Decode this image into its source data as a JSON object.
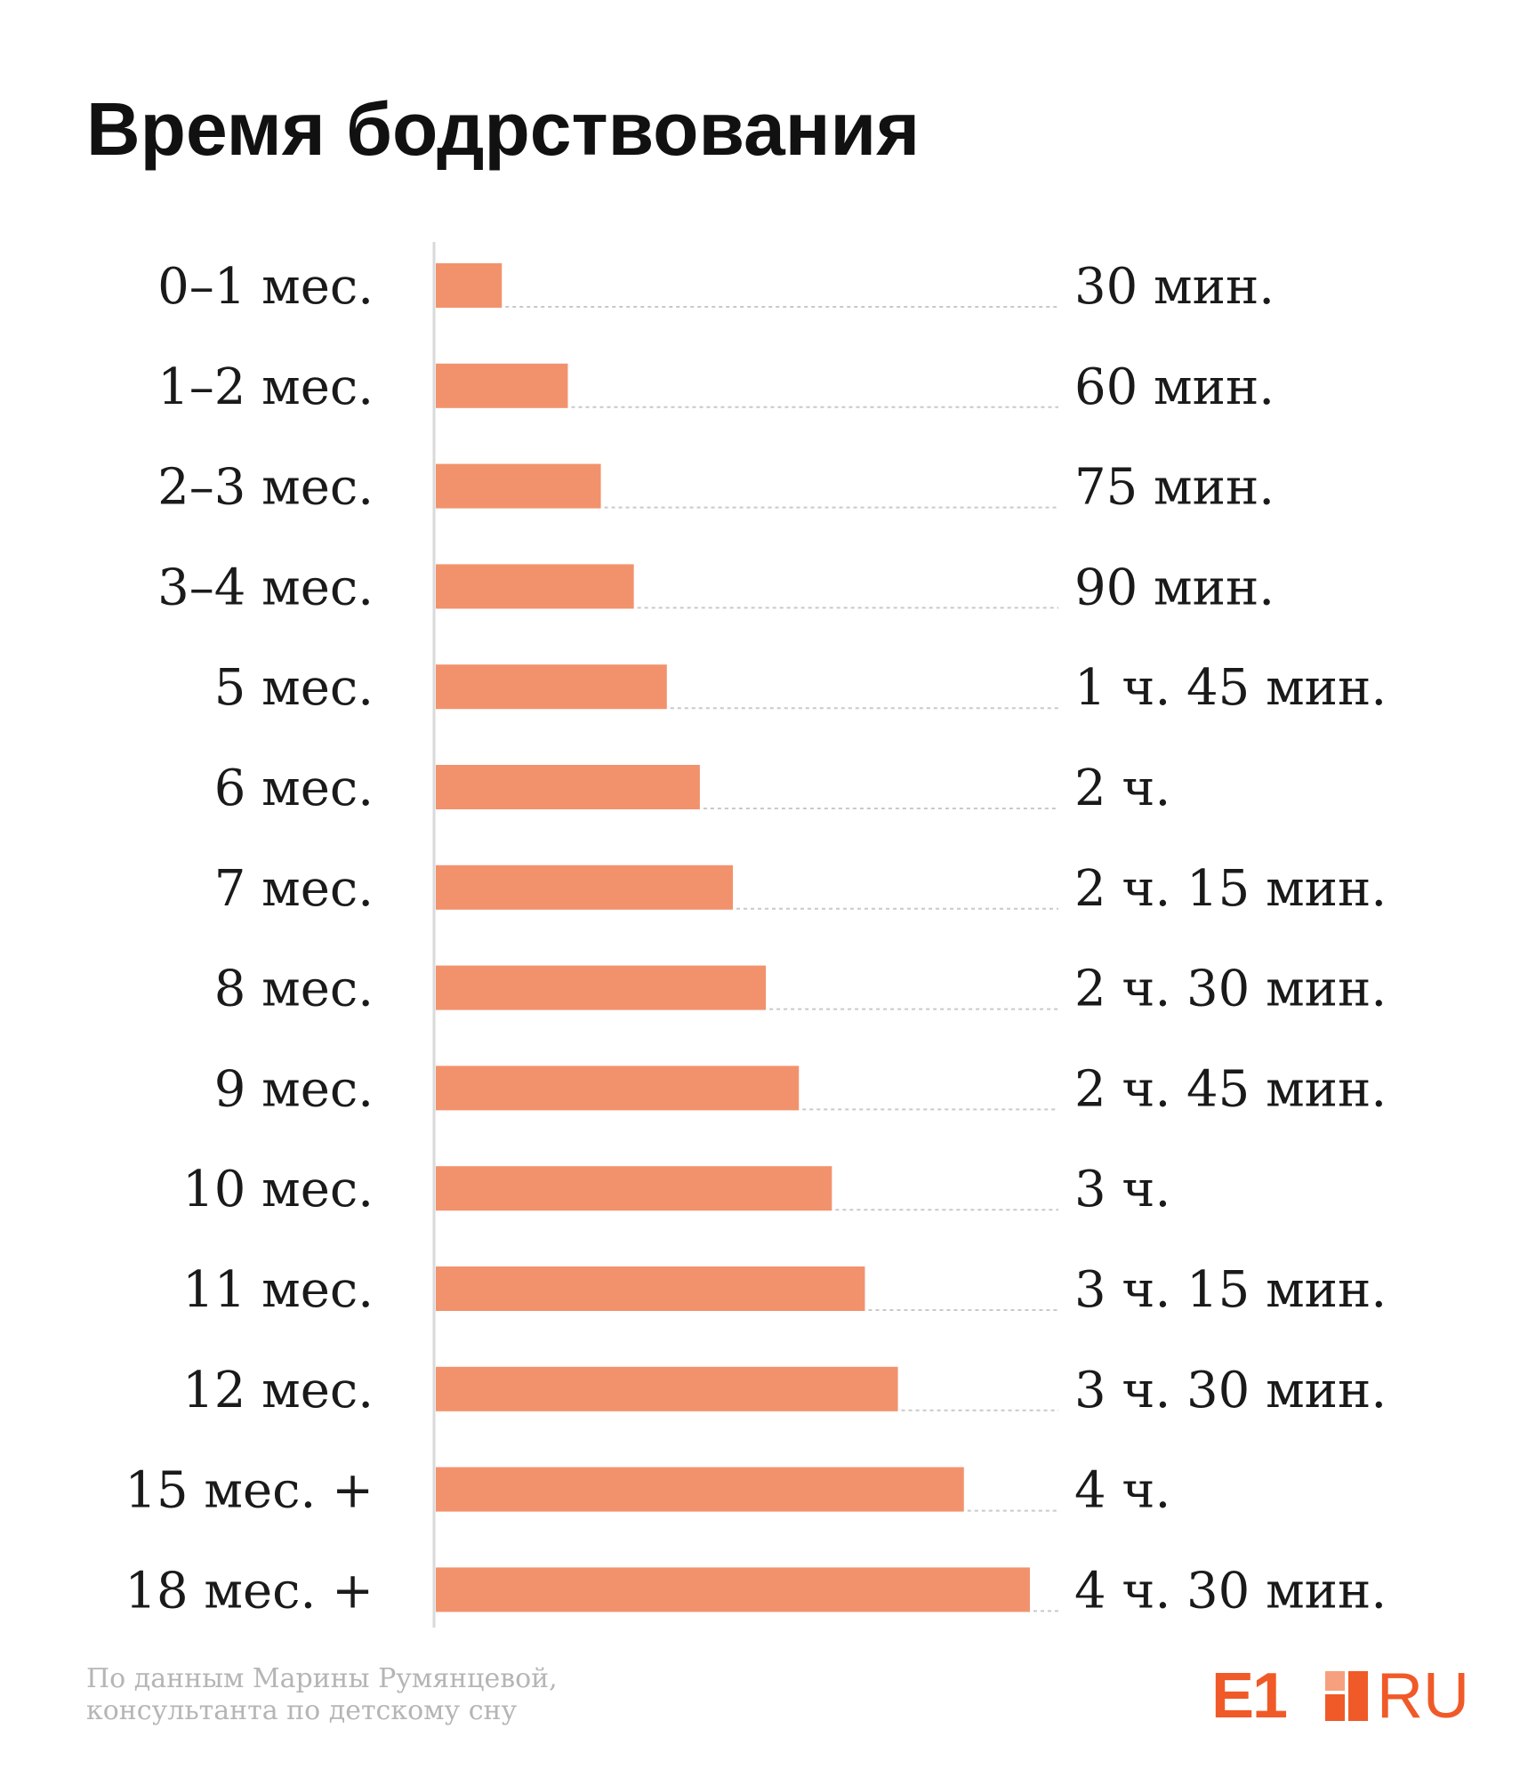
{
  "chart_data": {
    "type": "bar",
    "orientation": "horizontal",
    "title": "Время бодрствования",
    "categories": [
      "0–1 мес.",
      "1–2 мес.",
      "2–3 мес.",
      "3–4 мес.",
      "5 мес.",
      "6 мес.",
      "7 мес.",
      "8 мес.",
      "9 мес.",
      "10 мес.",
      "11 мес.",
      "12 мес.",
      "15 мес. +",
      "18 мес. +"
    ],
    "values": [
      30,
      60,
      75,
      90,
      105,
      120,
      135,
      150,
      165,
      180,
      195,
      210,
      240,
      270
    ],
    "value_labels": [
      "30 мин.",
      "60 мин.",
      "75 мин.",
      "90 мин.",
      "1 ч. 45 мин.",
      "2 ч.",
      "2 ч. 15 мин.",
      "2 ч. 30 мин.",
      "2 ч. 45 мин.",
      "3 ч.",
      "3 ч. 15 мин.",
      "3 ч. 30 мин.",
      "4 ч.",
      "4 ч. 30 мин."
    ],
    "xlim": [
      0,
      270
    ],
    "grid": false
  },
  "colors": {
    "bar": "#f2926d",
    "axis": "#d9d9d9",
    "leader": "#c9c9c9",
    "text": "#1a1a1a",
    "source": "#b5b5b5",
    "logo": "#f05a28",
    "logo_light": "#f7a07e"
  },
  "source": {
    "line1": "По данным Марины Румянцевой,",
    "line2": "консультанта по детскому сну"
  },
  "logo": {
    "left": "E1",
    "right": "RU"
  }
}
